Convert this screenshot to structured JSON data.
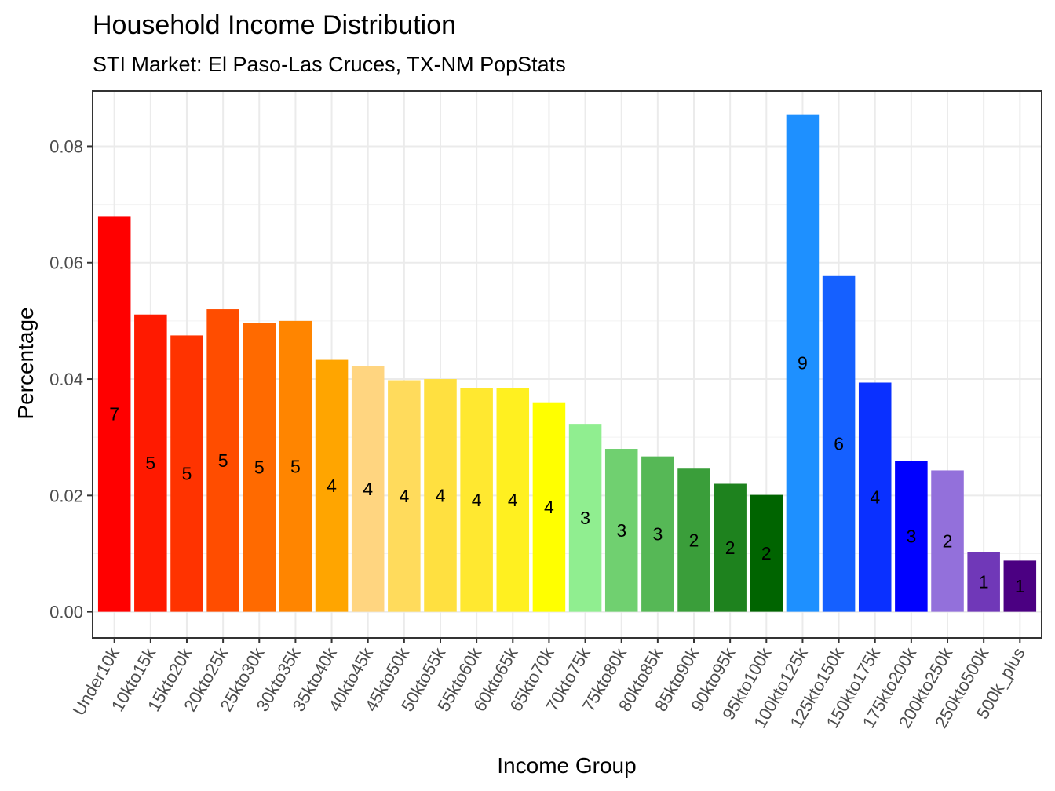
{
  "chart_data": {
    "type": "bar",
    "title": "Household Income Distribution",
    "subtitle": "STI Market: El Paso-Las Cruces, TX-NM PopStats",
    "xlabel": "Income Group",
    "ylabel": "Percentage",
    "ylim": [
      -0.0045,
      0.0895
    ],
    "yticks": [
      "0.00",
      "0.02",
      "0.04",
      "0.06",
      "0.08"
    ],
    "ytick_values": [
      0,
      0.02,
      0.04,
      0.06,
      0.08
    ],
    "grid": true,
    "categories": [
      "Under10k",
      "10kto15k",
      "15kto20k",
      "20kto25k",
      "25kto30k",
      "30kto35k",
      "35kto40k",
      "40kto45k",
      "45kto50k",
      "50kto55k",
      "55kto60k",
      "60kto65k",
      "65kto70k",
      "70kto75k",
      "75kto80k",
      "80kto85k",
      "85kto90k",
      "90kto95k",
      "95kto100k",
      "100kto125k",
      "125kto150k",
      "150kto175k",
      "175kto200k",
      "200kto250k",
      "250kto500k",
      "500k_plus"
    ],
    "values": [
      0.068,
      0.0511,
      0.0475,
      0.052,
      0.0497,
      0.05,
      0.0433,
      0.0422,
      0.0398,
      0.04,
      0.0385,
      0.0385,
      0.036,
      0.0323,
      0.028,
      0.0267,
      0.0246,
      0.022,
      0.0201,
      0.0855,
      0.0577,
      0.0394,
      0.0259,
      0.0243,
      0.0103,
      0.0088
    ],
    "labels": [
      "7",
      "5",
      "5",
      "5",
      "5",
      "5",
      "4",
      "4",
      "4",
      "4",
      "4",
      "4",
      "4",
      "3",
      "3",
      "3",
      "2",
      "2",
      "2",
      "9",
      "6",
      "4",
      "3",
      "2",
      "1",
      "1"
    ],
    "colors": [
      "#FF0000",
      "#FF1A00",
      "#FF3300",
      "#FF4D00",
      "#FF6A00",
      "#FF8500",
      "#FFA500",
      "#FFD580",
      "#FFDB5C",
      "#FFE040",
      "#FFE830",
      "#FFF020",
      "#FFFF00",
      "#90EE90",
      "#70D070",
      "#56B856",
      "#3A9E3A",
      "#1E821E",
      "#006400",
      "#1E90FF",
      "#1560FF",
      "#0A30FF",
      "#0000FF",
      "#9370DB",
      "#7038B8",
      "#4B0082"
    ]
  }
}
